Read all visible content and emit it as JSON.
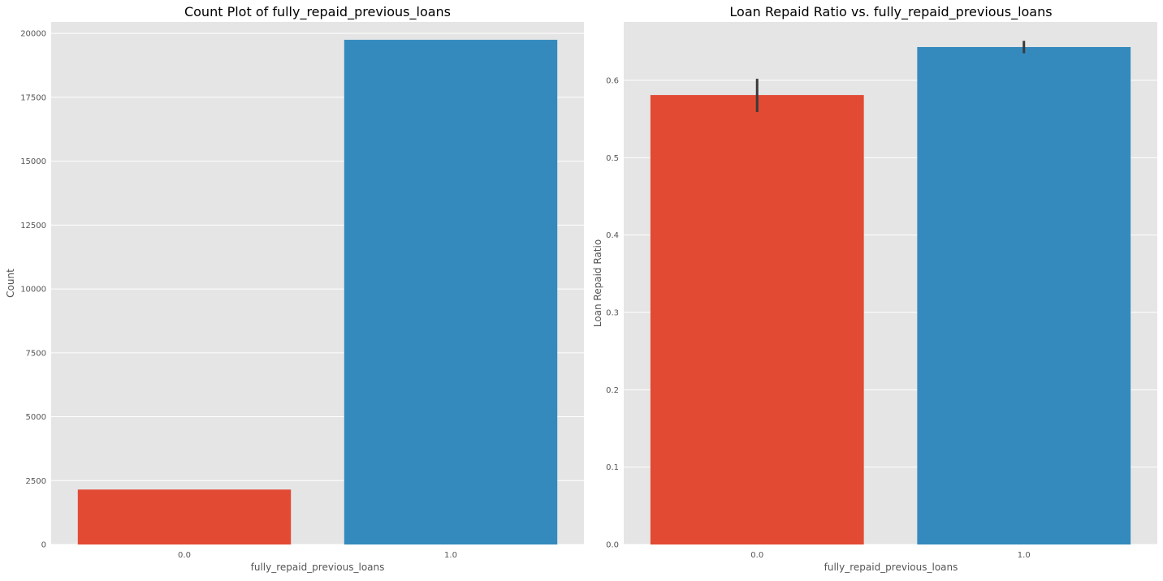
{
  "chart_data": [
    {
      "type": "bar",
      "title": "Count Plot of fully_repaid_previous_loans",
      "xlabel": "fully_repaid_previous_loans",
      "ylabel": "Count",
      "categories": [
        "0.0",
        "1.0"
      ],
      "values": [
        2150,
        19750
      ],
      "colors": [
        "#E24A33",
        "#348ABD"
      ],
      "ylim": [
        0,
        20450
      ],
      "yticks": [
        0,
        2500,
        5000,
        7500,
        10000,
        12500,
        15000,
        17500,
        20000
      ],
      "ytick_labels": [
        "0",
        "2500",
        "5000",
        "7500",
        "10000",
        "12500",
        "15000",
        "17500",
        "20000"
      ],
      "grid": true
    },
    {
      "type": "bar",
      "title": "Loan Repaid Ratio vs. fully_repaid_previous_loans",
      "xlabel": "fully_repaid_previous_loans",
      "ylabel": "Loan Repaid Ratio",
      "categories": [
        "0.0",
        "1.0"
      ],
      "values": [
        0.581,
        0.643
      ],
      "error_bars": [
        [
          0.559,
          0.602
        ],
        [
          0.635,
          0.651
        ]
      ],
      "colors": [
        "#E24A33",
        "#348ABD"
      ],
      "ylim": [
        0,
        0.6755
      ],
      "yticks": [
        0,
        0.1,
        0.2,
        0.3,
        0.4,
        0.5,
        0.6
      ],
      "ytick_labels": [
        "0.0",
        "0.1",
        "0.2",
        "0.3",
        "0.4",
        "0.5",
        "0.6"
      ],
      "grid": true
    }
  ]
}
